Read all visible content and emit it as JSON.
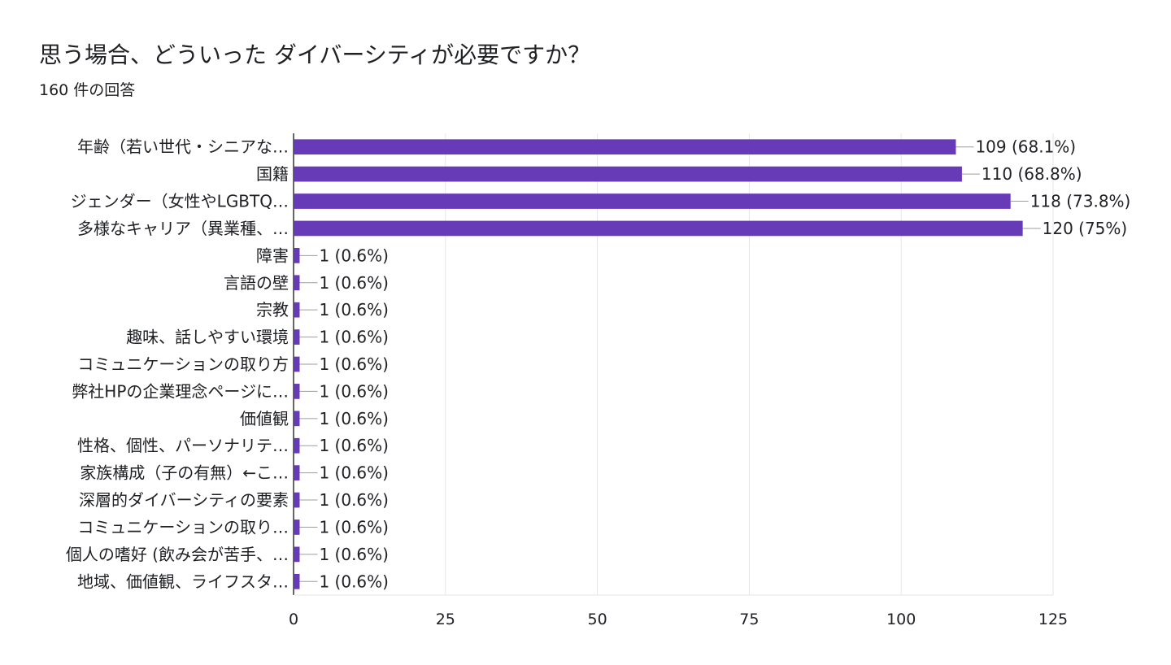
{
  "chart_data": {
    "type": "bar",
    "orientation": "horizontal",
    "title": "思う場合、どういった ダイバーシティが必要ですか？",
    "subtitle": "160 件の回答",
    "xlabel": "",
    "ylabel": "",
    "xlim": [
      0,
      125
    ],
    "x_ticks": [
      "0",
      "25",
      "50",
      "75",
      "100",
      "125"
    ],
    "grid": true,
    "bar_color": "#673ab7",
    "categories": [
      "年齢（若い世代・シニアな…",
      "国籍",
      "ジェンダー（女性やLGBTQ…",
      "多様なキャリア（異業種、…",
      "障害",
      "言語の壁",
      "宗教",
      "趣味、話しやすい環境",
      "コミュニケーションの取り方",
      "弊社HPの企業理念ページに…",
      "価値観",
      "性格、個性、パーソナリテ…",
      "家族構成（子の有無）←こ…",
      "深層的ダイバーシティの要素",
      "コミュニケーションの取り…",
      "個人の嗜好 (飲み会が苦手、…",
      "地域、価値観、ライフスタ…"
    ],
    "values": [
      109,
      110,
      118,
      120,
      1,
      1,
      1,
      1,
      1,
      1,
      1,
      1,
      1,
      1,
      1,
      1,
      1
    ],
    "data_labels": [
      "109 (68.1%)",
      "110 (68.8%)",
      "118 (73.8%)",
      "120 (75%)",
      "1 (0.6%)",
      "1 (0.6%)",
      "1 (0.6%)",
      "1 (0.6%)",
      "1 (0.6%)",
      "1 (0.6%)",
      "1 (0.6%)",
      "1 (0.6%)",
      "1 (0.6%)",
      "1 (0.6%)",
      "1 (0.6%)",
      "1 (0.6%)",
      "1 (0.6%)"
    ]
  }
}
